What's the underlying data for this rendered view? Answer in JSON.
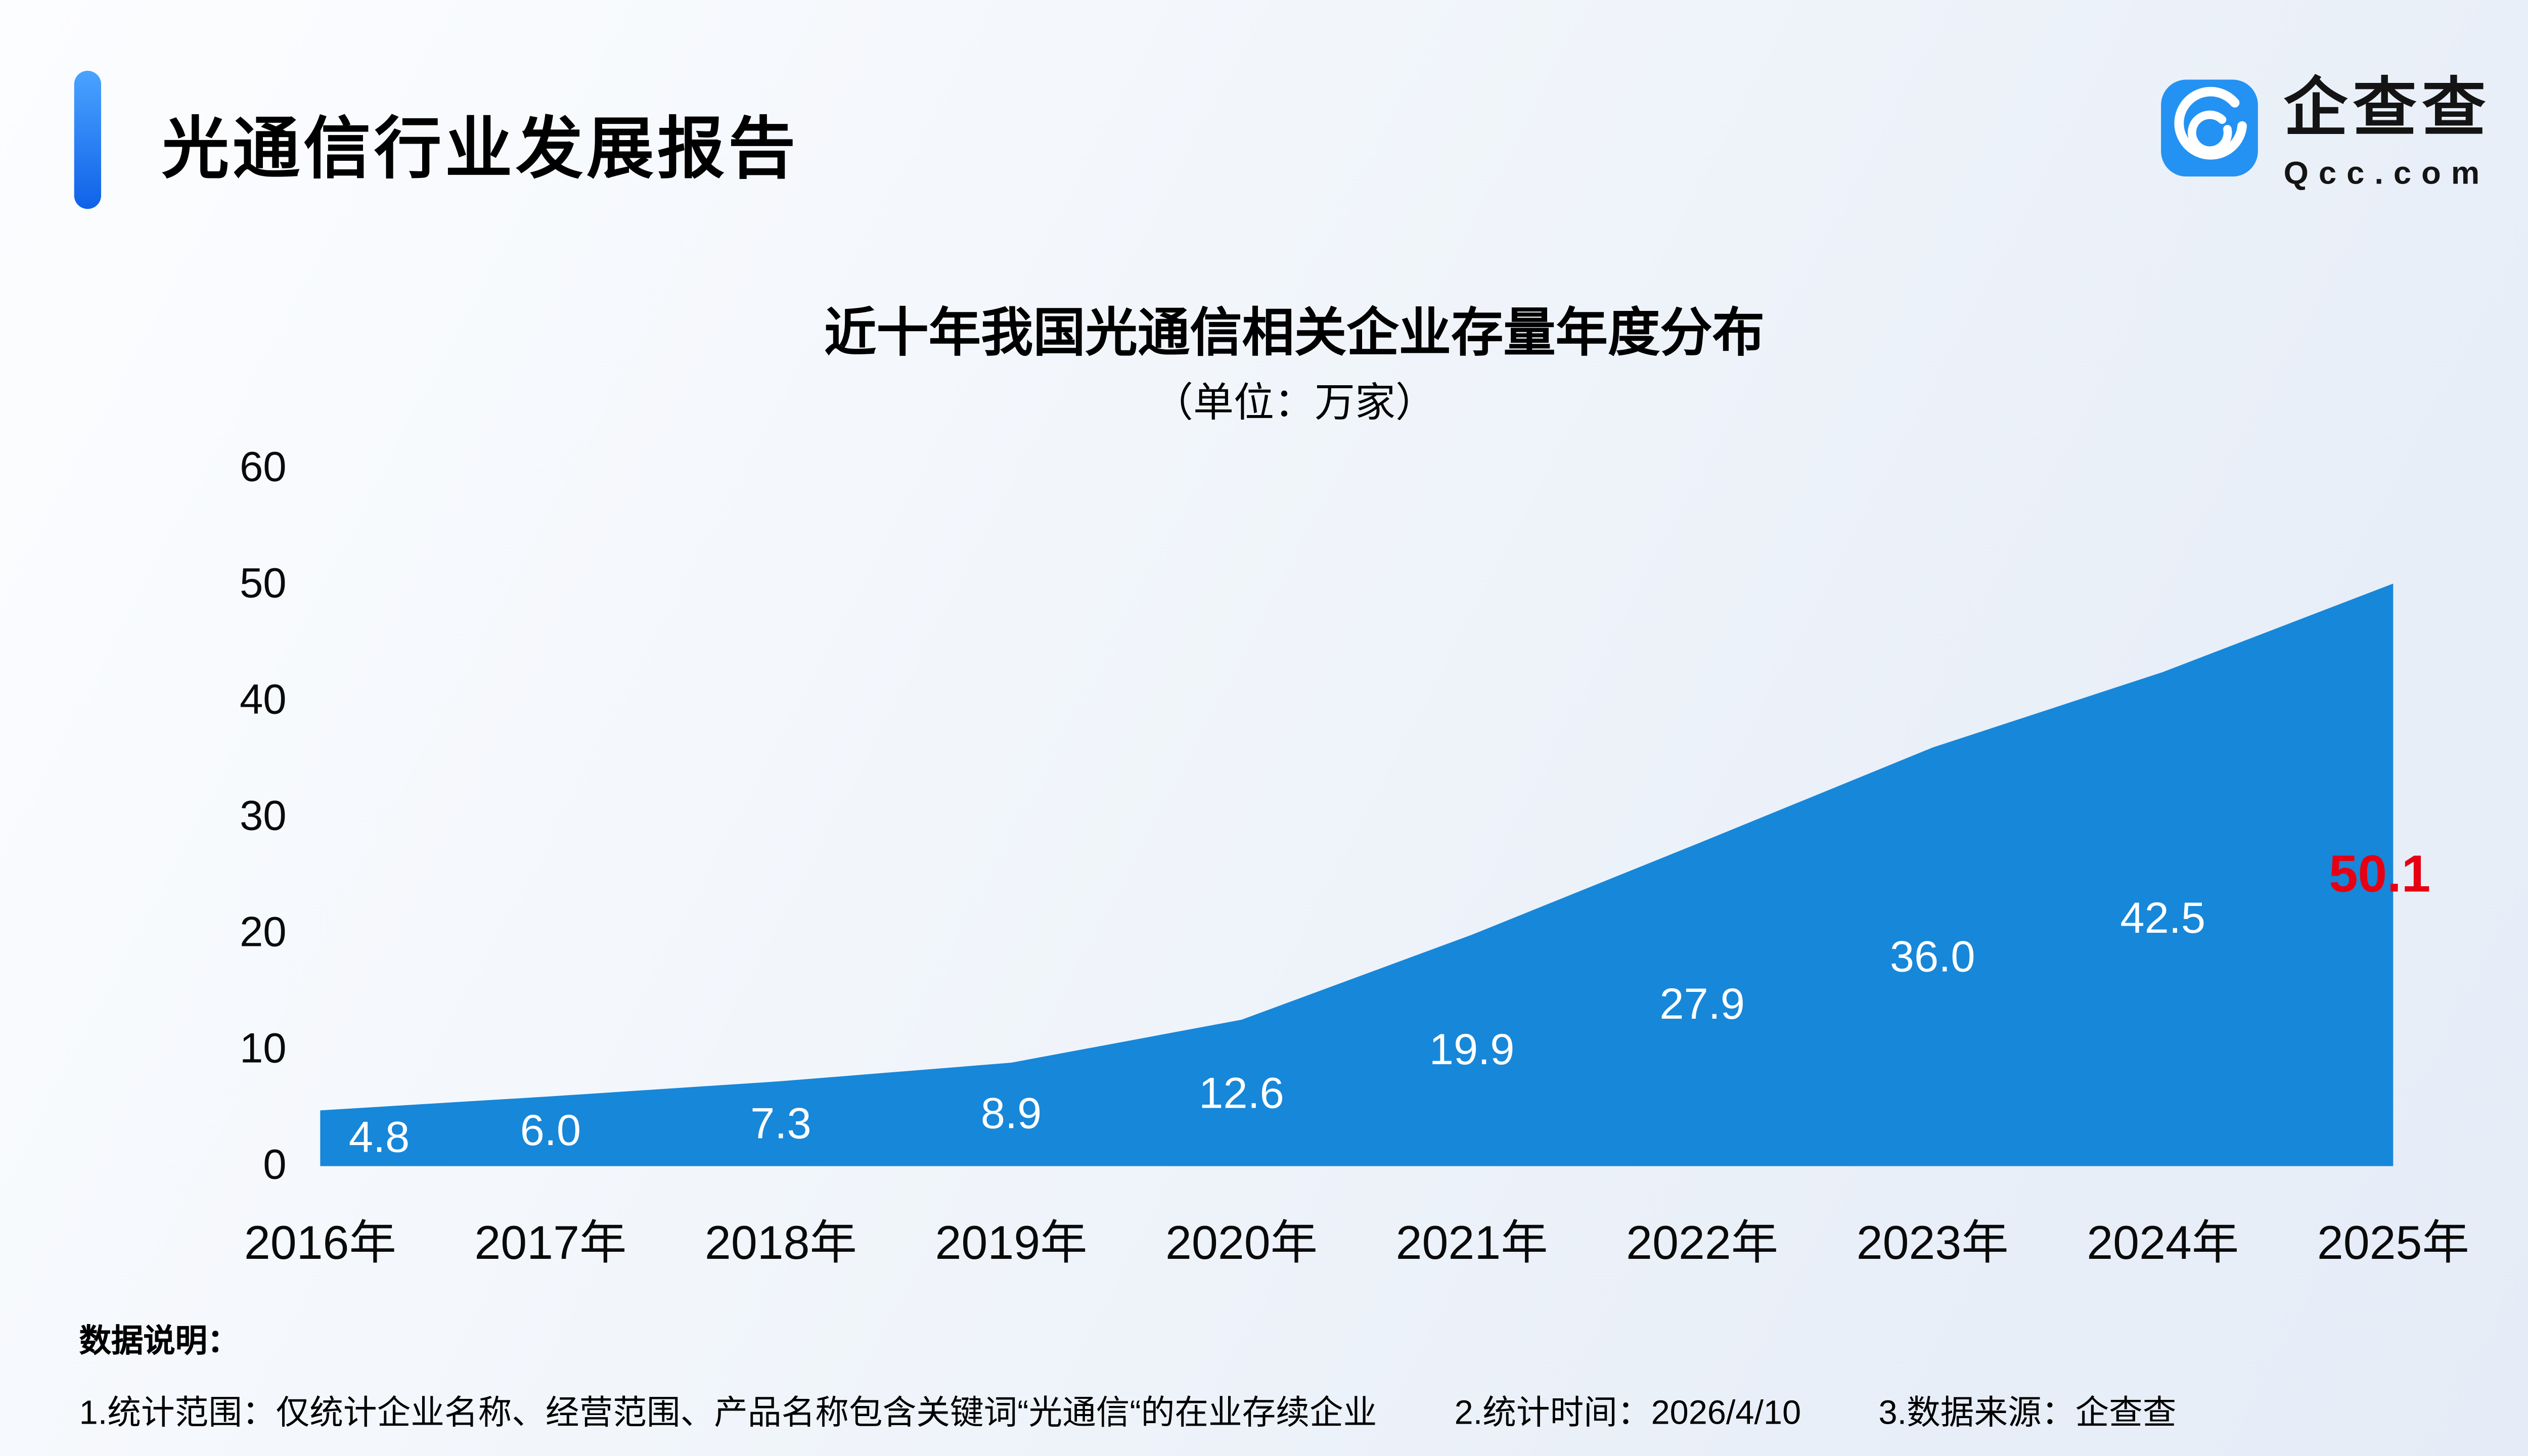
{
  "header": {
    "title": "光通信行业发展报告"
  },
  "logo": {
    "name": "企查查",
    "domain": "Qcc.com",
    "brand_color": "#2492f2"
  },
  "chart_data": {
    "type": "area",
    "title": "近十年我国光通信相关企业存量年度分布",
    "subtitle": "（单位：万家）",
    "categories": [
      "2016年",
      "2017年",
      "2018年",
      "2019年",
      "2020年",
      "2021年",
      "2022年",
      "2023年",
      "2024年",
      "2025年"
    ],
    "values": [
      4.8,
      6.0,
      7.3,
      8.9,
      12.6,
      19.9,
      27.9,
      36.0,
      42.5,
      50.1
    ],
    "ylim": [
      0,
      60
    ],
    "yticks": [
      0,
      10,
      20,
      30,
      40,
      50,
      60
    ],
    "grid": false,
    "legend": "none",
    "area_color": "#1787d9",
    "value_label_color": "#ffffff",
    "last_value_label_color": "#e60012"
  },
  "footer": {
    "heading": "数据说明：",
    "notes": [
      "1.统计范围：仅统计企业名称、经营范围、产品名称包含关键词“光通信“的在业存续企业",
      "2.统计时间：2026/4/10",
      "3.数据来源：企查查"
    ]
  }
}
